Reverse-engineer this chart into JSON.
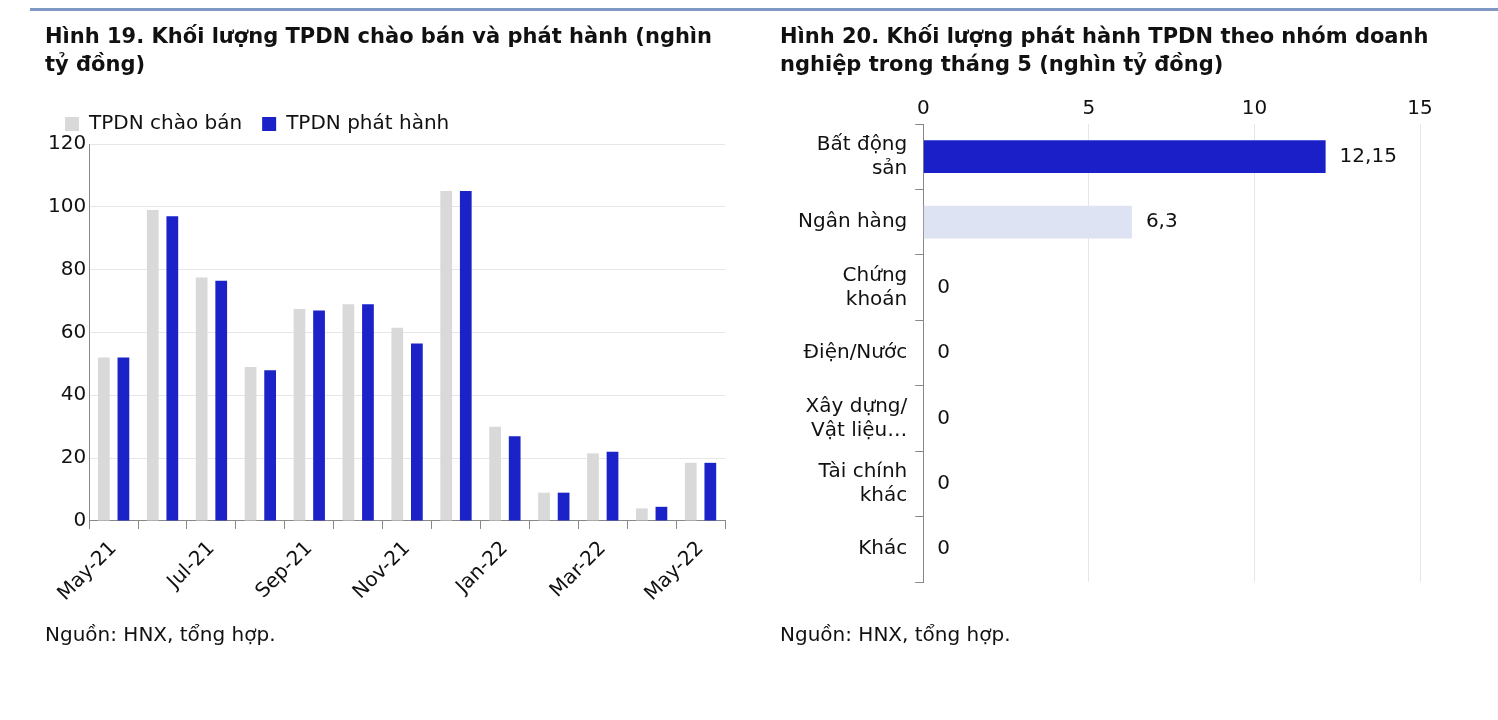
{
  "chart_data": [
    {
      "type": "bar",
      "title": "Hình 19. Khối lượng TPDN chào bán và phát hành (nghìn tỷ đồng)",
      "categories": [
        "May-21",
        null,
        "Jul-21",
        null,
        "Sep-21",
        null,
        "Nov-21",
        null,
        "Jan-22",
        null,
        "Mar-22",
        null,
        "May-22"
      ],
      "series": [
        {
          "name": "TPDN chào bán",
          "color": "#d9d9d9",
          "values": [
            52,
            99,
            77.5,
            49,
            67.5,
            69,
            61.5,
            105,
            30,
            9,
            21.5,
            4,
            18.5
          ]
        },
        {
          "name": "TPDN phát hành",
          "color": "#1a22c8",
          "values": [
            52,
            97,
            76.5,
            48,
            67,
            69,
            56.5,
            105,
            27,
            9,
            22,
            4.5,
            18.5
          ]
        }
      ],
      "ylim": [
        0,
        120
      ],
      "yticks": [
        0,
        20,
        40,
        60,
        80,
        100,
        120
      ],
      "grid": "y",
      "legend": "top left",
      "annotations": [
        "Nguồn: HNX, tổng hợp."
      ]
    },
    {
      "type": "bar",
      "orientation": "horizontal",
      "title": "Hình 20. Khối lượng phát hành TPDN theo nhóm doanh nghiệp trong tháng 5 (nghìn tỷ đồng)",
      "categories": [
        "Bất động sản",
        "Ngân hàng",
        "Chứng khoán",
        "Điện/Nước",
        "Xây dựng/ Vật liệu…",
        "Tài chính khác",
        "Khác"
      ],
      "values": [
        12.15,
        6.3,
        0,
        0,
        0,
        0,
        0
      ],
      "colors": [
        "#1a1fc8",
        "#dde3f3",
        "#1a1fc8",
        "#1a1fc8",
        "#1a1fc8",
        "#1a1fc8",
        "#1a1fc8"
      ],
      "value_labels": [
        "12,15",
        "6,3",
        "0",
        "0",
        "0",
        "0",
        "0"
      ],
      "xlim": [
        0,
        15
      ],
      "xticks": [
        0,
        5,
        10,
        15
      ],
      "grid": "x",
      "annotations": [
        "Nguồn: HNX, tổng hợp."
      ]
    }
  ]
}
